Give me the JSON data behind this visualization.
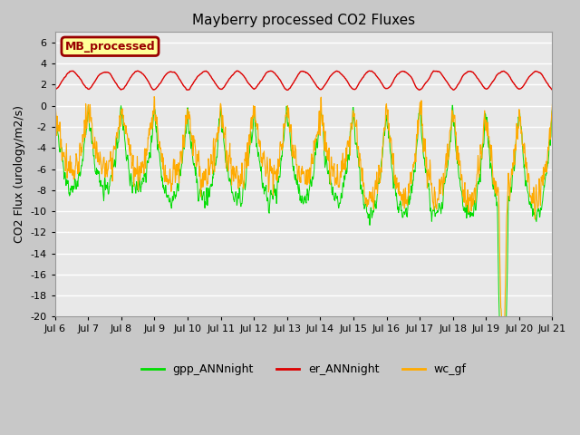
{
  "title": "Mayberry processed CO2 Fluxes",
  "ylabel": "CO2 Flux (urology/m2/s)",
  "ylim": [
    -20,
    7
  ],
  "yticks": [
    6,
    4,
    2,
    0,
    -2,
    -4,
    -6,
    -8,
    -10,
    -12,
    -14,
    -16,
    -18,
    -20
  ],
  "xlabel_dates": [
    "Jul 6",
    "Jul 7",
    "Jul 8",
    "Jul 9",
    "Jul 10",
    "Jul 11",
    "Jul 12",
    "Jul 13",
    "Jul 14",
    "Jul 15",
    "Jul 16",
    "Jul 17",
    "Jul 18",
    "Jul 19",
    "Jul 20",
    "Jul 21"
  ],
  "color_gpp": "#00dd00",
  "color_er": "#dd0000",
  "color_wc": "#ffaa00",
  "legend_label_gpp": "gpp_ANNnight",
  "legend_label_er": "er_ANNnight",
  "legend_label_wc": "wc_gf",
  "inset_label": "MB_processed",
  "inset_bg": "#ffff99",
  "inset_border": "#990000",
  "fig_facecolor": "#c8c8c8",
  "plot_bg": "#e8e8e8",
  "n_days": 15,
  "points_per_day": 96
}
